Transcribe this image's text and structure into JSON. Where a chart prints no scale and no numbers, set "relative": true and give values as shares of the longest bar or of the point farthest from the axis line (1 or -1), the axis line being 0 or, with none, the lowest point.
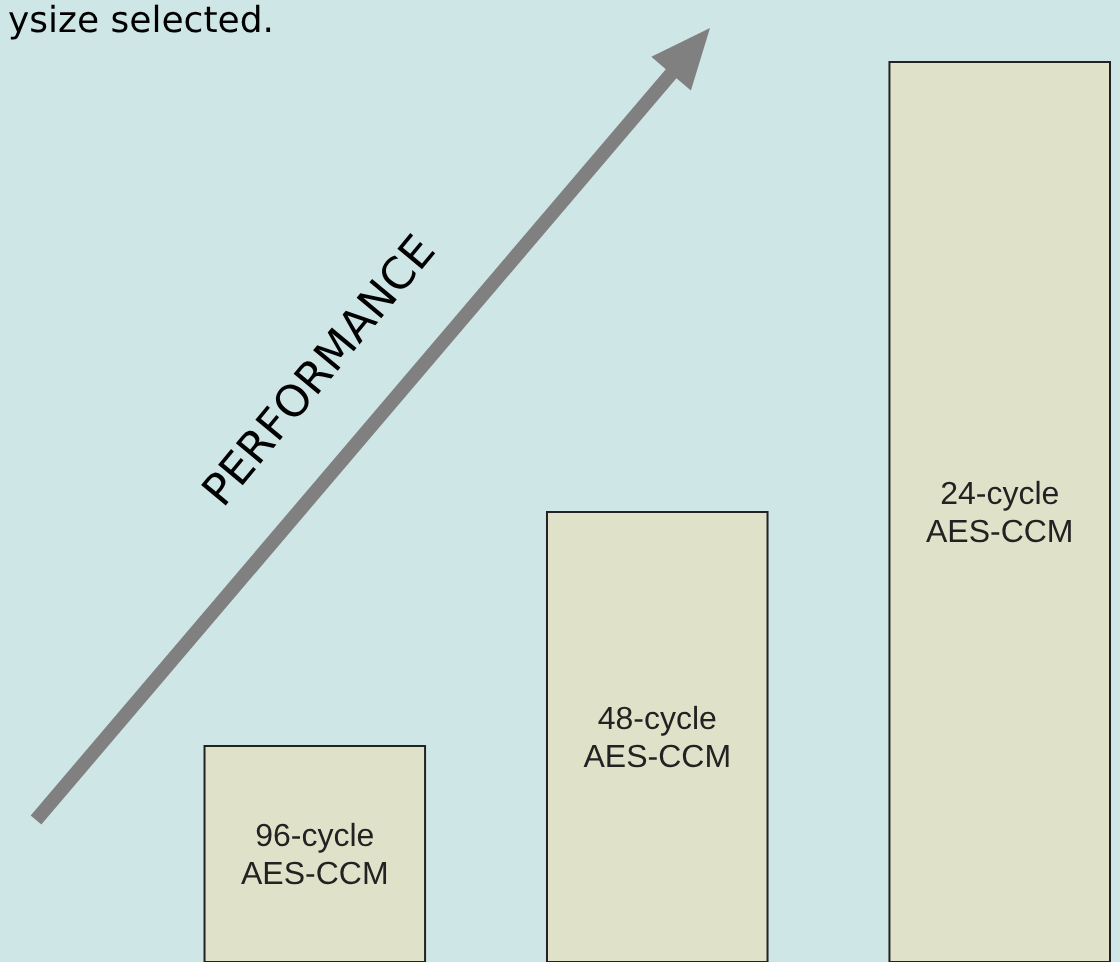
{
  "chart_data": {
    "type": "bar",
    "relative": true,
    "categories": [
      "96-cycle AES-CCM",
      "48-cycle AES-CCM",
      "24-cycle AES-CCM"
    ],
    "values": [
      0.24,
      0.5,
      1
    ],
    "color": "#dfe2c9",
    "annotations": [
      "ysize selected.",
      "PERFORMANCE"
    ]
  }
}
